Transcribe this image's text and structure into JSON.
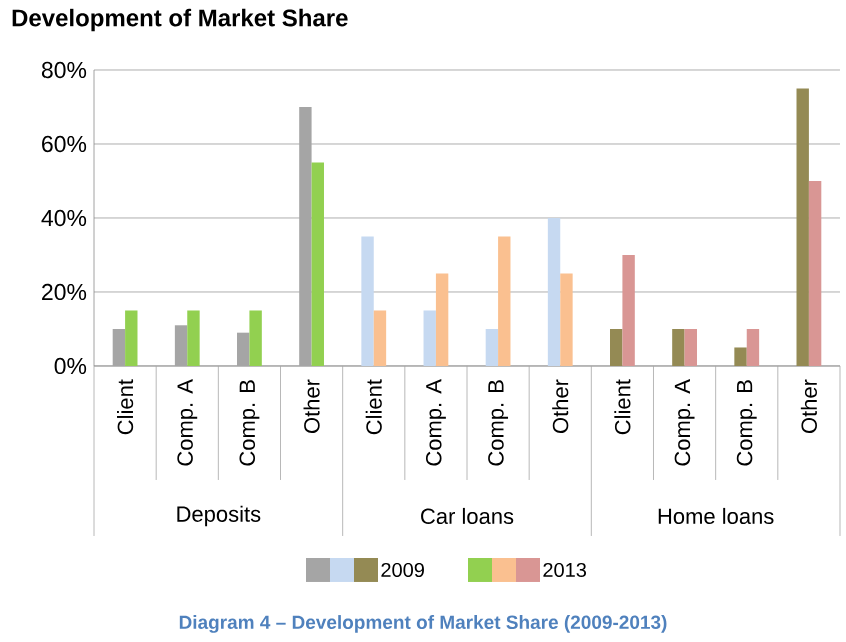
{
  "chart_data": {
    "type": "bar",
    "title": "Development of Market Share",
    "categories": [
      "Client",
      "Comp. A",
      "Comp. B",
      "Other",
      "Client",
      "Comp. A",
      "Comp. B",
      "Other",
      "Client",
      "Comp. A",
      "Comp. B",
      "Other"
    ],
    "series": [
      {
        "name": "2009",
        "colors": [
          "#a5a5a5",
          "#a5a5a5",
          "#a5a5a5",
          "#a5a5a5",
          "#c6d9f1",
          "#c6d9f1",
          "#c6d9f1",
          "#c6d9f1",
          "#948a54",
          "#948a54",
          "#948a54",
          "#948a54"
        ],
        "values": [
          10,
          11,
          9,
          70,
          35,
          15,
          10,
          40,
          10,
          10,
          5,
          75
        ]
      },
      {
        "name": "2013",
        "colors": [
          "#92d050",
          "#92d050",
          "#92d050",
          "#92d050",
          "#fac090",
          "#fac090",
          "#fac090",
          "#fac090",
          "#d99694",
          "#d99694",
          "#d99694",
          "#d99694"
        ],
        "values": [
          15,
          15,
          15,
          55,
          15,
          25,
          35,
          25,
          30,
          10,
          10,
          50
        ]
      }
    ],
    "ylim": [
      0,
      80
    ],
    "yticks": [
      {
        "value": 0,
        "label": "0%"
      },
      {
        "value": 20,
        "label": "20%"
      },
      {
        "value": 40,
        "label": "40%"
      },
      {
        "value": 60,
        "label": "60%"
      },
      {
        "value": 80,
        "label": "80%"
      }
    ],
    "grid": "y",
    "legend": "bottom",
    "annotations": [
      "Deposits",
      "Car loans",
      "Home loans",
      "Diagram 4 – Development of Market Share (2009-2013)"
    ]
  }
}
